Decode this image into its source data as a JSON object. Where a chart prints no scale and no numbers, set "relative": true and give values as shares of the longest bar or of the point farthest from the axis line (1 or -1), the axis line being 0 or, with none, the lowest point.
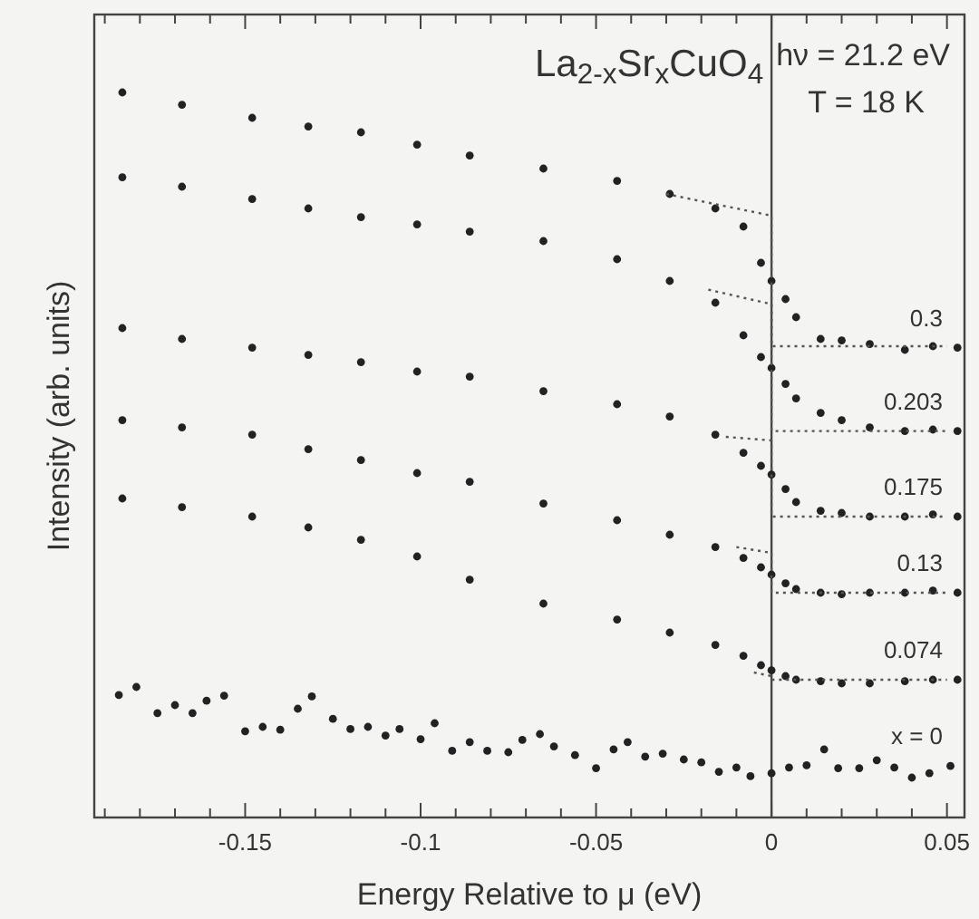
{
  "chart_data": {
    "type": "scatter",
    "relative": true,
    "xlabel": "Energy Relative to μ  (eV)",
    "ylabel": "Intensity (arb. units)",
    "annotations": [
      "La$_{2-x}$Sr$_{x}$CuO$_{4}$",
      "hν = 21.2 eV",
      "T = 18 K"
    ],
    "xlim": [
      -0.193,
      0.055
    ],
    "xticks": [
      {
        "value": -0.19,
        "label": null
      },
      {
        "value": -0.18,
        "label": null
      },
      {
        "value": -0.17,
        "label": null
      },
      {
        "value": -0.16,
        "label": null
      },
      -0.15,
      {
        "value": -0.14,
        "label": null
      },
      {
        "value": -0.13,
        "label": null
      },
      {
        "value": -0.12,
        "label": null
      },
      {
        "value": -0.11,
        "label": null
      },
      -0.1,
      {
        "value": -0.09,
        "label": null
      },
      {
        "value": -0.08,
        "label": null
      },
      {
        "value": -0.07,
        "label": null
      },
      {
        "value": -0.06,
        "label": null
      },
      -0.05,
      {
        "value": -0.04,
        "label": null
      },
      {
        "value": -0.03,
        "label": null
      },
      {
        "value": -0.02,
        "label": null
      },
      {
        "value": -0.01,
        "label": null
      },
      0,
      {
        "value": 0.01,
        "label": null
      },
      {
        "value": 0.02,
        "label": null
      },
      {
        "value": 0.03,
        "label": null
      },
      {
        "value": 0.04,
        "label": null
      },
      0.05
    ],
    "tick_labels": "x",
    "marker": "circle",
    "ref_lines": [
      {
        "axis": "x",
        "value": 0,
        "color": "#444444",
        "line_style": "solid"
      }
    ],
    "x": [
      -0.185,
      -0.168,
      -0.148,
      -0.132,
      -0.117,
      -0.101,
      -0.086,
      -0.065,
      -0.044,
      -0.029,
      -0.016,
      -0.008,
      -0.003,
      0,
      0.004,
      0.007,
      0.014,
      0.02,
      0.028,
      0.038,
      0.046,
      0.053
    ],
    "series": [
      {
        "name": "0.3",
        "color": "#222222",
        "values": [
          1,
          0.983,
          0.965,
          0.953,
          0.945,
          0.928,
          0.913,
          0.895,
          0.878,
          0.86,
          0.84,
          0.815,
          0.765,
          0.74,
          0.715,
          0.69,
          0.66,
          0.658,
          0.653,
          0.645,
          0.65,
          0.648
        ]
      },
      {
        "name": "0.203",
        "color": "#222222",
        "values": [
          0.883,
          0.87,
          0.853,
          0.84,
          0.828,
          0.818,
          0.808,
          0.795,
          0.77,
          0.74,
          0.71,
          0.665,
          0.635,
          0.62,
          0.598,
          0.578,
          0.558,
          0.548,
          0.538,
          0.533,
          0.535,
          0.533
        ]
      },
      {
        "name": "0.175",
        "color": "#222222",
        "values": [
          0.675,
          0.66,
          0.648,
          0.638,
          0.628,
          0.615,
          0.608,
          0.588,
          0.57,
          0.553,
          0.528,
          0.503,
          0.485,
          0.473,
          0.453,
          0.435,
          0.423,
          0.42,
          0.415,
          0.415,
          0.418,
          0.415
        ]
      },
      {
        "name": "0.13",
        "color": "#222222",
        "values": [
          0.548,
          0.538,
          0.528,
          0.508,
          0.493,
          0.475,
          0.463,
          0.433,
          0.41,
          0.39,
          0.373,
          0.358,
          0.345,
          0.335,
          0.323,
          0.315,
          0.31,
          0.308,
          0.31,
          0.31,
          0.313,
          0.31
        ]
      },
      {
        "name": "0.074",
        "color": "#222222",
        "values": [
          0.44,
          0.428,
          0.415,
          0.4,
          0.383,
          0.36,
          0.328,
          0.295,
          0.273,
          0.255,
          0.238,
          0.223,
          0.21,
          0.203,
          0.195,
          0.19,
          0.188,
          0.185,
          0.185,
          0.188,
          0.19,
          0.19
        ]
      },
      {
        "name": "x = 0",
        "color": "#222222",
        "x": [
          -0.186,
          -0.181,
          -0.175,
          -0.17,
          -0.165,
          -0.161,
          -0.156,
          -0.15,
          -0.145,
          -0.14,
          -0.135,
          -0.131,
          -0.125,
          -0.12,
          -0.115,
          -0.11,
          -0.106,
          -0.1,
          -0.096,
          -0.091,
          -0.086,
          -0.081,
          -0.075,
          -0.071,
          -0.066,
          -0.062,
          -0.056,
          -0.05,
          -0.045,
          -0.041,
          -0.036,
          -0.031,
          -0.025,
          -0.02,
          -0.015,
          -0.01,
          -0.006,
          0,
          0.005,
          0.01,
          0.015,
          0.019,
          0.025,
          0.03,
          0.035,
          0.04,
          0.045,
          0.051
        ],
        "values": [
          0.169,
          0.18,
          0.144,
          0.155,
          0.144,
          0.161,
          0.168,
          0.119,
          0.125,
          0.121,
          0.15,
          0.167,
          0.136,
          0.122,
          0.125,
          0.113,
          0.122,
          0.108,
          0.13,
          0.092,
          0.104,
          0.092,
          0.09,
          0.107,
          0.115,
          0.098,
          0.086,
          0.068,
          0.094,
          0.104,
          0.084,
          0.088,
          0.08,
          0.076,
          0.063,
          0.069,
          0.057,
          0.061,
          0.069,
          0.072,
          0.094,
          0.068,
          0.068,
          0.079,
          0.069,
          0.055,
          0.061,
          0.071
        ]
      },
      {
        "type": "line",
        "line_style": "dotted",
        "marker": "none",
        "color": "#555555",
        "x": [
          -0.03,
          0,
          0,
          0.05
        ],
        "values": [
          0.86,
          0.83,
          0.65,
          0.65
        ]
      },
      {
        "type": "line",
        "line_style": "dotted",
        "marker": "none",
        "color": "#555555",
        "x": [
          -0.018,
          0,
          0,
          0.05
        ],
        "values": [
          0.728,
          0.708,
          0.533,
          0.533
        ]
      },
      {
        "type": "line",
        "line_style": "dotted",
        "marker": "none",
        "color": "#555555",
        "x": [
          -0.013,
          0,
          0,
          0.05
        ],
        "values": [
          0.525,
          0.52,
          0.415,
          0.415
        ]
      },
      {
        "type": "line",
        "line_style": "dotted",
        "marker": "none",
        "color": "#555555",
        "x": [
          -0.01,
          0,
          0,
          0.05
        ],
        "values": [
          0.373,
          0.365,
          0.31,
          0.31
        ]
      },
      {
        "type": "line",
        "line_style": "dotted",
        "marker": "none",
        "color": "#555555",
        "x": [
          -0.005,
          0,
          0,
          0.05
        ],
        "values": [
          0.2,
          0.195,
          0.19,
          0.19
        ]
      }
    ]
  }
}
